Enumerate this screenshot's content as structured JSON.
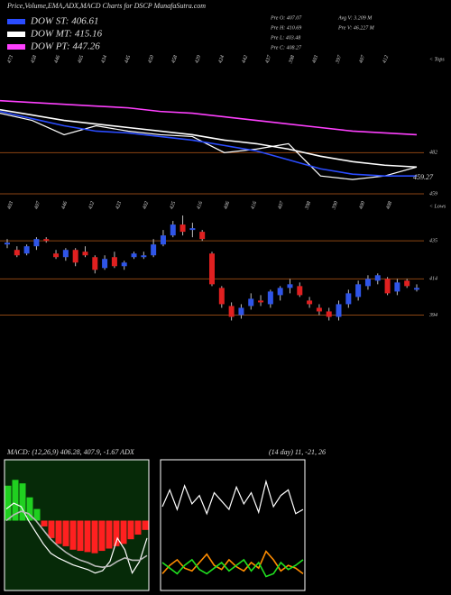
{
  "chart_data": [
    {
      "type": "line",
      "title": "Price,Volume,EMA,ADX,MACD Charts for DSCP MunafaSutra.com",
      "legend_title_color": "#ddd",
      "annotations": [
        "Pre  O: 407.07",
        "Pre  H: 410.69",
        "Pre  L: 403.48",
        "Pre  C: 408.27",
        "Avg V: 3.209 M",
        "Pre  V: 46.227 M"
      ],
      "side_label": "< Tops",
      "price_label": "459.27",
      "volume_labels": [
        "473",
        "458",
        "446",
        "465",
        "434",
        "445",
        "450",
        "458",
        "429",
        "424",
        "442",
        "437",
        "398",
        "403",
        "397",
        "407",
        "412"
      ],
      "ylim": [
        454,
        537
      ],
      "yticks": [
        482,
        459
      ],
      "series": [
        {
          "color": "#ffffff",
          "values": [
            504,
            500,
            492,
            497,
            494,
            492,
            491,
            482,
            484,
            487,
            469,
            467,
            469,
            474
          ]
        },
        {
          "name": "DOW ST: 406.61",
          "color": "#2a4cff",
          "values": [
            505,
            501,
            497,
            494,
            493,
            491,
            489,
            486,
            483,
            478,
            473,
            470,
            469,
            469
          ]
        },
        {
          "name": "DOW MT: 415.16",
          "color": "#ffffff",
          "values": [
            506,
            503,
            500,
            498,
            496,
            494,
            492,
            489,
            487,
            484,
            480,
            477,
            475,
            474
          ]
        },
        {
          "name": "DOW PT: 447.26",
          "color": "#ff40ff",
          "values": [
            511,
            510,
            509,
            508,
            507,
            505,
            504,
            502,
            500,
            498,
            496,
            494,
            493,
            492
          ]
        }
      ]
    },
    {
      "type": "candlestick",
      "side_label": "< Lows",
      "volume_labels": [
        "403",
        "407",
        "446",
        "432",
        "423",
        "402",
        "425",
        "416",
        "406",
        "416",
        "407",
        "398",
        "390",
        "400",
        "408"
      ],
      "ylim": [
        324,
        456
      ],
      "yticks": [
        435,
        414,
        394
      ],
      "up_color": "#2f55e8",
      "down_color": "#e02020",
      "open": [
        433,
        430,
        428,
        432,
        436,
        428,
        426,
        430,
        429,
        426,
        420,
        426,
        421,
        426,
        426,
        427,
        433,
        438,
        444,
        441,
        440,
        428,
        409,
        399,
        394,
        399,
        402,
        400,
        405,
        409,
        410,
        402,
        398,
        396,
        393,
        400,
        404,
        410,
        413,
        414,
        407,
        413,
        408
      ],
      "high": [
        436,
        432,
        433,
        437,
        437,
        430,
        431,
        431,
        432,
        427,
        427,
        429,
        424,
        429,
        429,
        436,
        441,
        446,
        449,
        445,
        441,
        429,
        410,
        401,
        400,
        406,
        405,
        408,
        410,
        414,
        412,
        404,
        400,
        398,
        402,
        408,
        413,
        416,
        417,
        415,
        414,
        414,
        411
      ],
      "low": [
        431,
        426,
        427,
        430,
        434,
        425,
        424,
        421,
        426,
        417,
        419,
        420,
        419,
        425,
        425,
        426,
        432,
        437,
        438,
        437,
        435,
        410,
        398,
        391,
        392,
        397,
        399,
        398,
        402,
        406,
        404,
        398,
        394,
        391,
        391,
        398,
        402,
        408,
        411,
        405,
        405,
        409,
        407
      ],
      "close": [
        434,
        427,
        432,
        436,
        435,
        426,
        430,
        423,
        427,
        419,
        425,
        421,
        423,
        428,
        427,
        433,
        438,
        444,
        440,
        442,
        436,
        411,
        400,
        393,
        398,
        403,
        401,
        407,
        409,
        411,
        405,
        400,
        396,
        393,
        400,
        406,
        411,
        414,
        416,
        406,
        412,
        410,
        409
      ]
    },
    {
      "type": "macd",
      "title": "MACD: (12,26,9) 406.28, 407.9, -1.67  ADX",
      "ylim": [
        -6,
        6
      ],
      "background": "#062a08",
      "up_color": "#20d020",
      "down_color": "#ff2020",
      "histogram": [
        3,
        3.5,
        3.2,
        2,
        1,
        -0.5,
        -1.5,
        -2,
        -2.2,
        -2.5,
        -2.6,
        -2.7,
        -2.8,
        -2.6,
        -2.4,
        -2.2,
        -2,
        -1.6,
        -1.2,
        -0.8
      ],
      "series": [
        {
          "color": "#ffffff",
          "values": [
            1,
            1.5,
            1.2,
            0,
            -1,
            -2,
            -2.8,
            -3.2,
            -3.5,
            -3.8,
            -4,
            -4.2,
            -4.5,
            -4.3,
            -3.5,
            -1.5,
            -2.5,
            -4.5,
            -3.5,
            -1.5
          ]
        },
        {
          "color": "#bbbbbb",
          "values": [
            0,
            0.5,
            0.8,
            0.6,
            0,
            -0.8,
            -1.6,
            -2.2,
            -2.7,
            -3.1,
            -3.4,
            -3.6,
            -3.9,
            -4,
            -3.9,
            -3.5,
            -3.2,
            -3.4,
            -3.4,
            -3
          ]
        }
      ]
    },
    {
      "type": "adx",
      "title": "(14  day) 11, -21, 26",
      "ylim": [
        0,
        100
      ],
      "background": "#000000",
      "series": [
        {
          "color": "#ffffff",
          "values": [
            60,
            72,
            58,
            75,
            62,
            68,
            55,
            70,
            64,
            58,
            74,
            62,
            70,
            56,
            78,
            60,
            68,
            72,
            55,
            58
          ]
        },
        {
          "color": "#ff8c00",
          "values": [
            12,
            18,
            22,
            16,
            14,
            20,
            26,
            18,
            15,
            22,
            17,
            14,
            20,
            16,
            28,
            22,
            14,
            18,
            16,
            12
          ]
        },
        {
          "color": "#20e020",
          "values": [
            20,
            16,
            12,
            18,
            22,
            15,
            12,
            16,
            20,
            14,
            18,
            22,
            14,
            20,
            10,
            12,
            20,
            15,
            18,
            22
          ]
        }
      ]
    }
  ]
}
